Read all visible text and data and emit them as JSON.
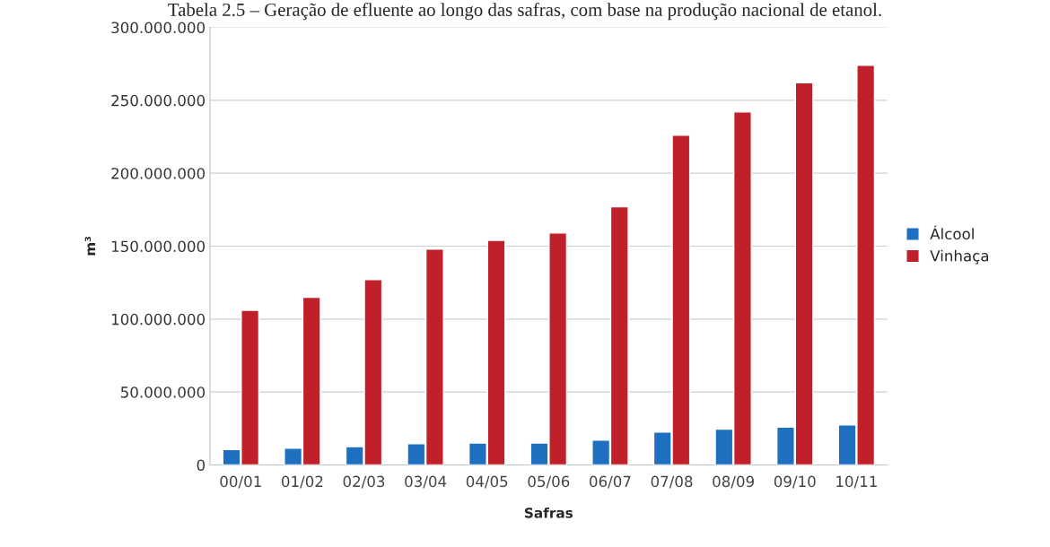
{
  "chart_data": {
    "type": "bar",
    "title": "Tabela 2.5 – Geração de efluente ao longo das safras, com base na produção nacional de etanol.",
    "xlabel": "Safras",
    "ylabel": "m³",
    "categories": [
      "00/01",
      "01/02",
      "02/03",
      "03/04",
      "04/05",
      "05/06",
      "06/07",
      "07/08",
      "08/09",
      "09/10",
      "10/11"
    ],
    "series": [
      {
        "name": "Álcool",
        "color": "#1f6fc0",
        "values": [
          10500000,
          11500000,
          12500000,
          14500000,
          15000000,
          15000000,
          17000000,
          22500000,
          24500000,
          26000000,
          27500000
        ]
      },
      {
        "name": "Vinhaça",
        "color": "#c0202a",
        "values": [
          106000000,
          115000000,
          127000000,
          148000000,
          154000000,
          159000000,
          177000000,
          226000000,
          242000000,
          262000000,
          274000000
        ]
      }
    ],
    "ylim": [
      0,
      300000000
    ],
    "yticks": [
      {
        "value": 0,
        "label": "0"
      },
      {
        "value": 50000000,
        "label": "50.000.000"
      },
      {
        "value": 100000000,
        "label": "100.000.000"
      },
      {
        "value": 150000000,
        "label": "150.000.000"
      },
      {
        "value": 200000000,
        "label": "200.000.000"
      },
      {
        "value": 250000000,
        "label": "250.000.000"
      },
      {
        "value": 300000000,
        "label": "300.000.000"
      }
    ],
    "grid": "y",
    "legend": "right"
  }
}
